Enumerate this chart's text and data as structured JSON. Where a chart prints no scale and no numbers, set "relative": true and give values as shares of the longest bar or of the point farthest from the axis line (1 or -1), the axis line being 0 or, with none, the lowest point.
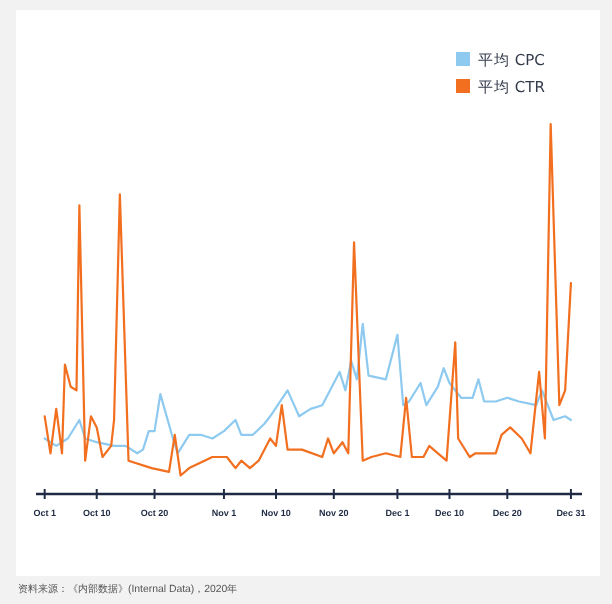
{
  "chart_data": {
    "type": "line",
    "relative": true,
    "legend": "top right",
    "grid": false,
    "marker": "none",
    "line_style": "solid",
    "xlim": [
      "2020-09-29T12:00",
      "2021-01-01T22:00"
    ],
    "xticks": [
      {
        "value": "2020-10-01",
        "label": "Oct 1"
      },
      {
        "value": "2020-10-10",
        "label": "Oct 10"
      },
      {
        "value": "2020-10-20",
        "label": "Oct 20"
      },
      {
        "value": "2020-11-01",
        "label": "Nov 1"
      },
      {
        "value": "2020-11-10",
        "label": "Nov 10"
      },
      {
        "value": "2020-11-20",
        "label": "Nov 20"
      },
      {
        "value": "2020-12-01",
        "label": "Dec 1"
      },
      {
        "value": "2020-12-10",
        "label": "Dec 10"
      },
      {
        "value": "2020-12-20",
        "label": "Dec 20"
      },
      {
        "value": "2020-12-31",
        "label": "Dec 31"
      }
    ],
    "series": [
      {
        "name": "平均 CPC",
        "color": "#8ecaf0",
        "x": [
          "2020-10-01",
          "2020-10-03",
          "2020-10-05",
          "2020-10-07",
          "2020-10-08",
          "2020-10-10",
          "2020-10-13",
          "2020-10-15",
          "2020-10-17",
          "2020-10-18",
          "2020-10-19",
          "2020-10-20",
          "2020-10-21",
          "2020-10-23",
          "2020-10-24",
          "2020-10-26",
          "2020-10-28",
          "2020-10-30",
          "2020-11-01",
          "2020-11-03",
          "2020-11-04",
          "2020-11-06",
          "2020-11-08",
          "2020-11-09",
          "2020-11-12",
          "2020-11-14",
          "2020-11-16",
          "2020-11-18",
          "2020-11-21",
          "2020-11-22",
          "2020-11-23",
          "2020-11-24",
          "2020-11-25",
          "2020-11-26",
          "2020-11-29",
          "2020-12-01",
          "2020-12-02",
          "2020-12-03",
          "2020-12-05",
          "2020-12-06",
          "2020-12-08",
          "2020-12-09",
          "2020-12-10",
          "2020-12-12",
          "2020-12-14",
          "2020-12-15",
          "2020-12-16",
          "2020-12-18",
          "2020-12-20",
          "2020-12-22",
          "2020-12-25",
          "2020-12-26",
          "2020-12-28",
          "2020-12-30",
          "2020-12-31"
        ],
        "values": [
          0.15,
          0.13,
          0.15,
          0.2,
          0.15,
          0.14,
          0.13,
          0.13,
          0.11,
          0.12,
          0.17,
          0.17,
          0.27,
          0.16,
          0.11,
          0.16,
          0.16,
          0.15,
          0.17,
          0.2,
          0.16,
          0.16,
          0.19,
          0.21,
          0.28,
          0.21,
          0.23,
          0.24,
          0.33,
          0.28,
          0.36,
          0.31,
          0.46,
          0.32,
          0.31,
          0.43,
          0.24,
          0.25,
          0.3,
          0.24,
          0.29,
          0.34,
          0.3,
          0.26,
          0.26,
          0.31,
          0.25,
          0.25,
          0.26,
          0.25,
          0.24,
          0.28,
          0.2,
          0.21,
          0.2
        ]
      },
      {
        "name": "平均 CTR",
        "color": "#f26f1f",
        "x": [
          "2020-10-01",
          "2020-10-02",
          "2020-10-03",
          "2020-10-04",
          "2020-10-04T12:00",
          "2020-10-05T12:00",
          "2020-10-06T12:00",
          "2020-10-07",
          "2020-10-08",
          "2020-10-09",
          "2020-10-10",
          "2020-10-11",
          "2020-10-12T12:00",
          "2020-10-13",
          "2020-10-14",
          "2020-10-15T12:00",
          "2020-10-19T12:00",
          "2020-10-22T12:00",
          "2020-10-23T12:00",
          "2020-10-24T12:00",
          "2020-10-26",
          "2020-10-30",
          "2020-11-01T12:00",
          "2020-11-03",
          "2020-11-04",
          "2020-11-05T12:00",
          "2020-11-07",
          "2020-11-09",
          "2020-11-10",
          "2020-11-11",
          "2020-11-12",
          "2020-11-14T12:00",
          "2020-11-18",
          "2020-11-19",
          "2020-11-20",
          "2020-11-21T12:00",
          "2020-11-22T12:00",
          "2020-11-23T12:00",
          "2020-11-25",
          "2020-11-26T12:00",
          "2020-11-29",
          "2020-12-01T12:00",
          "2020-12-02T12:00",
          "2020-12-03T12:00",
          "2020-12-05T12:00",
          "2020-12-06T12:00",
          "2020-12-08",
          "2020-12-09T12:00",
          "2020-12-11",
          "2020-12-11T12:00",
          "2020-12-13T12:00",
          "2020-12-14T12:00",
          "2020-12-16T12:00",
          "2020-12-18",
          "2020-12-19",
          "2020-12-20T12:00",
          "2020-12-22T12:00",
          "2020-12-24",
          "2020-12-25T12:00",
          "2020-12-26T12:00",
          "2020-12-27T12:00",
          "2020-12-29",
          "2020-12-30",
          "2020-12-31"
        ],
        "values": [
          0.21,
          0.11,
          0.23,
          0.11,
          0.35,
          0.29,
          0.28,
          0.78,
          0.09,
          0.21,
          0.18,
          0.1,
          0.13,
          0.2,
          0.81,
          0.09,
          0.07,
          0.06,
          0.16,
          0.05,
          0.07,
          0.1,
          0.1,
          0.07,
          0.09,
          0.07,
          0.09,
          0.15,
          0.13,
          0.24,
          0.12,
          0.12,
          0.1,
          0.15,
          0.11,
          0.14,
          0.11,
          0.68,
          0.09,
          0.1,
          0.11,
          0.1,
          0.26,
          0.1,
          0.1,
          0.13,
          0.11,
          0.09,
          0.41,
          0.15,
          0.1,
          0.11,
          0.11,
          0.11,
          0.16,
          0.18,
          0.15,
          0.11,
          0.33,
          0.15,
          1.0,
          0.24,
          0.28,
          0.57
        ]
      }
    ],
    "annotations": [
      "资料来源：《内部数据》(Internal Data)，2020年"
    ]
  }
}
